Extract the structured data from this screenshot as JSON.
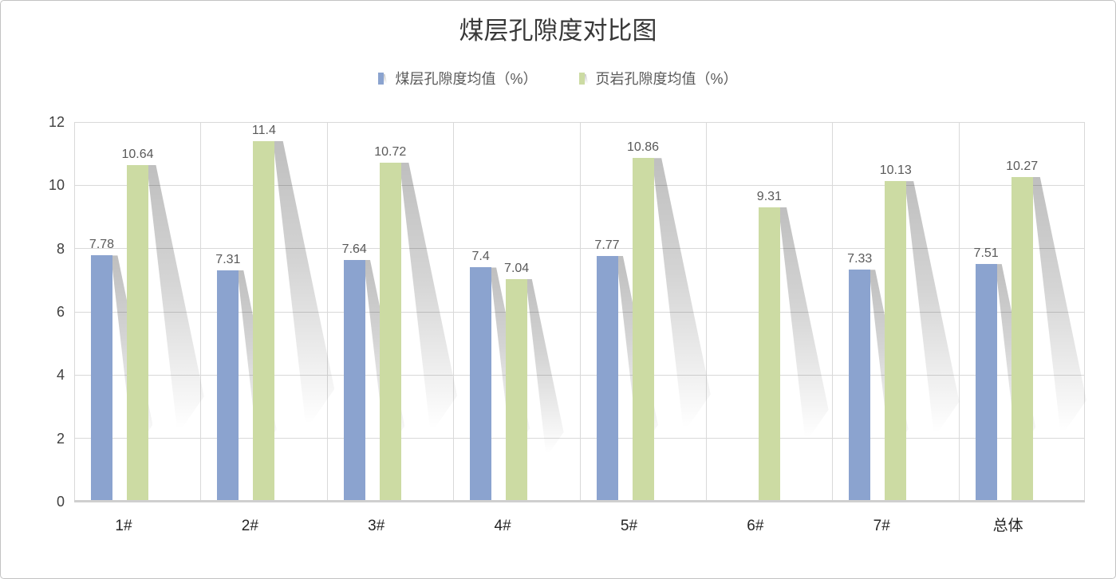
{
  "window": {
    "background": "#ffffff",
    "border_color": "#c3c3c3"
  },
  "chart_data": {
    "type": "bar",
    "title": "煤层孔隙度对比图",
    "categories": [
      "1#",
      "2#",
      "3#",
      "4#",
      "5#",
      "6#",
      "7#",
      "总体"
    ],
    "series": [
      {
        "name": "煤层孔隙度均值（%）",
        "color": "#8ba3cf",
        "values": [
          7.78,
          7.31,
          7.64,
          7.4,
          7.77,
          null,
          7.33,
          7.51
        ]
      },
      {
        "name": "页岩孔隙度均值（%）",
        "color": "#ccdba3",
        "values": [
          10.64,
          11.4,
          10.72,
          7.04,
          10.86,
          9.31,
          10.13,
          10.27
        ]
      }
    ],
    "data_labels": true,
    "ylim": [
      0,
      12
    ],
    "yticks": [
      0,
      2,
      4,
      6,
      8,
      10,
      12
    ],
    "grid": true,
    "legend_position": "top",
    "style": {
      "gridline_color": "#d9d9d9",
      "axis_line_color": "#cfcfcf",
      "tick_label_color": "#404040",
      "category_label_color": "#262626",
      "data_label_color": "#595959",
      "title_color": "#383838",
      "bar_shadow": "gray-fade-skewed"
    }
  }
}
